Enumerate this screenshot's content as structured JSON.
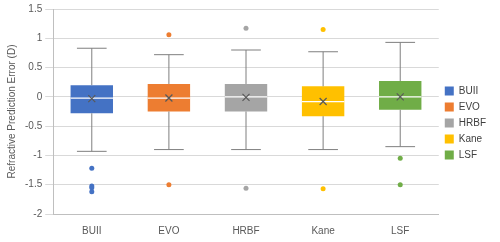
{
  "chart_data": {
    "type": "box",
    "ylabel": "Refractive Prediction Error (D)",
    "categories": [
      "BUII",
      "EVO",
      "HRBF",
      "Kane",
      "LSF"
    ],
    "series": [
      {
        "name": "BUII",
        "color": "#4472c4",
        "whisker_low": -0.93,
        "q1": -0.28,
        "median": -0.02,
        "q3": 0.2,
        "whisker_high": 0.83,
        "mean": -0.03,
        "outliers": [
          -1.22,
          -1.52,
          -1.55,
          -1.62
        ]
      },
      {
        "name": "EVO",
        "color": "#ed7d31",
        "whisker_low": -0.9,
        "q1": -0.25,
        "median": -0.02,
        "q3": 0.22,
        "whisker_high": 0.72,
        "mean": -0.02,
        "outliers": [
          1.06,
          -1.5
        ]
      },
      {
        "name": "HRBF",
        "color": "#a5a5a5",
        "whisker_low": -0.9,
        "q1": -0.25,
        "median": 0,
        "q3": 0.22,
        "whisker_high": 0.8,
        "mean": -0.01,
        "outliers": [
          1.17,
          -1.56
        ]
      },
      {
        "name": "Kane",
        "color": "#ffc000",
        "whisker_low": -0.9,
        "q1": -0.33,
        "median": -0.08,
        "q3": 0.18,
        "whisker_high": 0.77,
        "mean": -0.08,
        "outliers": [
          1.15,
          -1.57
        ]
      },
      {
        "name": "LSF",
        "color": "#70ad47",
        "whisker_low": -0.85,
        "q1": -0.22,
        "median": 0,
        "q3": 0.27,
        "whisker_high": 0.93,
        "mean": 0,
        "outliers": [
          -1.05,
          -1.5
        ]
      }
    ],
    "ylim": [
      -2,
      1.5
    ],
    "yticks": [
      -2,
      -1.5,
      -1,
      -0.5,
      0,
      0.5,
      1,
      1.5
    ],
    "grid": true,
    "legend": "right"
  }
}
